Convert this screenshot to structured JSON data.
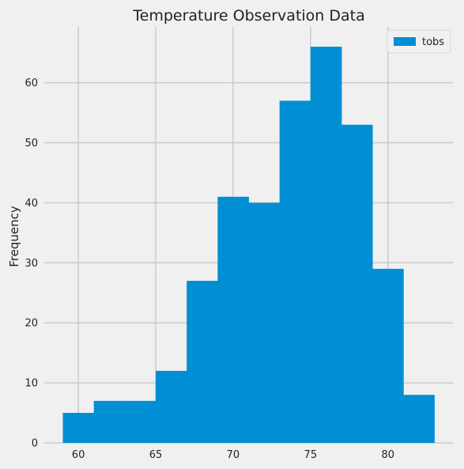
{
  "chart_data": {
    "type": "bar",
    "title": "Temperature Observation Data",
    "xlabel": "",
    "ylabel": "Frequency",
    "xlim": [
      57.8,
      84.2
    ],
    "ylim": [
      0,
      69.3
    ],
    "xticks": [
      60,
      65,
      70,
      75,
      80
    ],
    "yticks": [
      0,
      10,
      20,
      30,
      40,
      50,
      60
    ],
    "grid": true,
    "legend_position": "top-right",
    "bar_color": "#008fd5",
    "series": [
      {
        "name": "tobs",
        "bin_edges": [
          59,
          61,
          63,
          65,
          67,
          69,
          71,
          73,
          75,
          77,
          79,
          81,
          83
        ],
        "counts": [
          5,
          7,
          7,
          12,
          27,
          41,
          40,
          57,
          66,
          53,
          29,
          8
        ]
      }
    ]
  }
}
